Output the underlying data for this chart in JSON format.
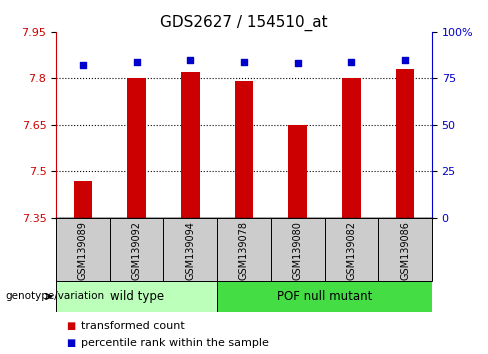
{
  "title": "GDS2627 / 154510_at",
  "samples": [
    "GSM139089",
    "GSM139092",
    "GSM139094",
    "GSM139078",
    "GSM139080",
    "GSM139082",
    "GSM139086"
  ],
  "groups": [
    "wild type",
    "wild type",
    "wild type",
    "POF null mutant",
    "POF null mutant",
    "POF null mutant",
    "POF null mutant"
  ],
  "transformed_count": [
    7.47,
    7.8,
    7.82,
    7.79,
    7.65,
    7.8,
    7.83
  ],
  "percentile_rank": [
    82,
    84,
    85,
    84,
    83,
    84,
    85
  ],
  "ymin": 7.35,
  "ymax": 7.95,
  "yticks": [
    7.35,
    7.5,
    7.65,
    7.8,
    7.95
  ],
  "ytick_labels": [
    "7.35",
    "7.5",
    "7.65",
    "7.8",
    "7.95"
  ],
  "right_yticks": [
    0,
    25,
    50,
    75,
    100
  ],
  "right_ytick_labels": [
    "0",
    "25",
    "50",
    "75",
    "100%"
  ],
  "bar_color": "#cc0000",
  "dot_color": "#0000cc",
  "group_colors": {
    "wild type": "#bbffbb",
    "POF null mutant": "#44dd44"
  },
  "sample_bg_color": "#cccccc",
  "group_label": "genotype/variation",
  "legend_items": [
    "transformed count",
    "percentile rank within the sample"
  ],
  "legend_colors": [
    "#cc0000",
    "#0000cc"
  ],
  "title_fontsize": 11,
  "tick_label_fontsize": 8,
  "sample_fontsize": 7,
  "group_fontsize": 8.5,
  "legend_fontsize": 8
}
